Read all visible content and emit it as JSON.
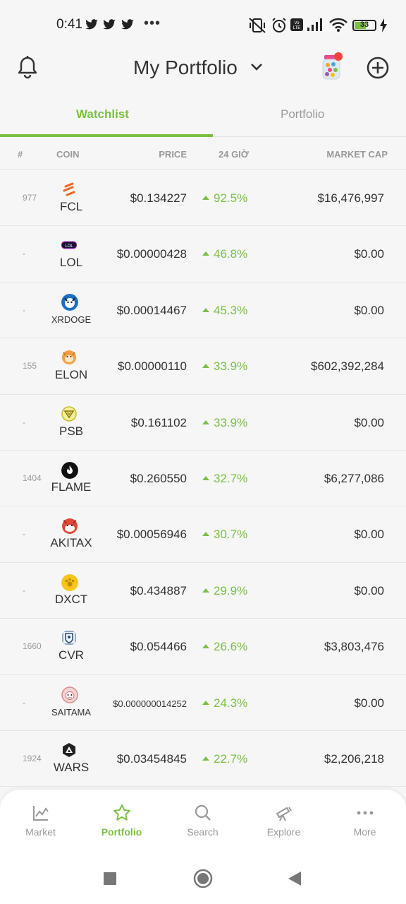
{
  "status": {
    "time": "0:41",
    "battery": "33",
    "dots": "•••"
  },
  "header": {
    "title": "My Portfolio"
  },
  "tabs": [
    {
      "label": "Watchlist"
    },
    {
      "label": "Portfolio"
    }
  ],
  "columns": {
    "rank": "#",
    "coin": "COIN",
    "price": "PRICE",
    "change": "24 GIỜ",
    "market_cap": "MARKET CAP"
  },
  "rows": [
    {
      "rank": "977",
      "symbol": "FCL",
      "price": "$0.134227",
      "change": "92.5%",
      "market_cap": "$16,476,997",
      "icon": "fcl-icon"
    },
    {
      "rank": "-",
      "symbol": "LOL",
      "price": "$0.00000428",
      "change": "46.8%",
      "market_cap": "$0.00",
      "icon": "lol-icon",
      "icon_text": "LOL"
    },
    {
      "rank": "-",
      "symbol": "XRDOGE",
      "price": "$0.00014467",
      "change": "45.3%",
      "market_cap": "$0.00",
      "icon": "xrdoge-icon"
    },
    {
      "rank": "155",
      "symbol": "ELON",
      "price": "$0.00000110",
      "change": "33.9%",
      "market_cap": "$602,392,284",
      "icon": "elon-icon"
    },
    {
      "rank": "-",
      "symbol": "PSB",
      "price": "$0.161102",
      "change": "33.9%",
      "market_cap": "$0.00",
      "icon": "psb-icon"
    },
    {
      "rank": "1404",
      "symbol": "FLAME",
      "price": "$0.260550",
      "change": "32.7%",
      "market_cap": "$6,277,086",
      "icon": "flame-icon"
    },
    {
      "rank": "-",
      "symbol": "AKITAX",
      "price": "$0.00056946",
      "change": "30.7%",
      "market_cap": "$0.00",
      "icon": "akitax-icon"
    },
    {
      "rank": "-",
      "symbol": "DXCT",
      "price": "$0.434887",
      "change": "29.9%",
      "market_cap": "$0.00",
      "icon": "dxct-icon"
    },
    {
      "rank": "1660",
      "symbol": "CVR",
      "price": "$0.054466",
      "change": "26.6%",
      "market_cap": "$3,803,476",
      "icon": "cvr-icon"
    },
    {
      "rank": "-",
      "symbol": "SAITAMA",
      "price": "$0.000000014252",
      "change": "24.3%",
      "market_cap": "$0.00",
      "icon": "saitama-icon"
    },
    {
      "rank": "1924",
      "symbol": "WARS",
      "price": "$0.03454845",
      "change": "22.7%",
      "market_cap": "$2,206,218",
      "icon": "wars-icon"
    }
  ],
  "bottom_nav": [
    {
      "label": "Market",
      "icon": "chart-icon"
    },
    {
      "label": "Portfolio",
      "icon": "star-icon",
      "active": true
    },
    {
      "label": "Search",
      "icon": "search-icon"
    },
    {
      "label": "Explore",
      "icon": "telescope-icon"
    },
    {
      "label": "More",
      "icon": "more-icon"
    }
  ],
  "colors": {
    "accent": "#7bc043",
    "muted": "#999999",
    "text": "#333333"
  }
}
